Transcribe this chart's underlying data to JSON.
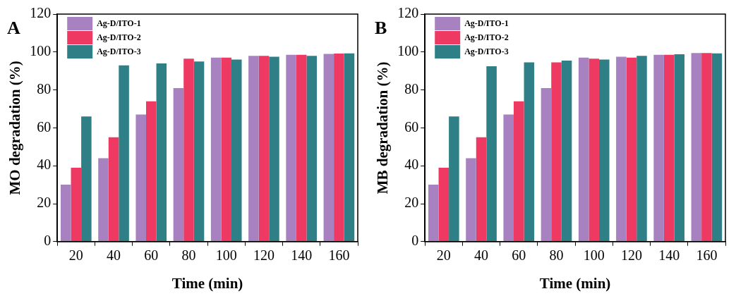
{
  "chart_data": [
    {
      "type": "bar",
      "annotations": [
        "A"
      ],
      "xlabel": "Time (min)",
      "ylabel": "MO degradation (%)",
      "categories": [
        "20",
        "40",
        "60",
        "80",
        "100",
        "120",
        "140",
        "160"
      ],
      "ylim": [
        0,
        120
      ],
      "yticks": [
        0,
        20,
        40,
        60,
        80,
        100,
        120
      ],
      "legend": "top left",
      "series": [
        {
          "name": "Ag-D/ITO-1",
          "color": "#a882c0",
          "values": [
            30,
            44,
            67,
            81,
            97,
            98,
            98.5,
            99
          ]
        },
        {
          "name": "Ag-D/ITO-2",
          "color": "#ee3a62",
          "values": [
            39,
            55,
            74,
            96.5,
            97,
            98,
            98.5,
            99.2
          ]
        },
        {
          "name": "Ag-D/ITO-3",
          "color": "#2e8086",
          "values": [
            66,
            93,
            94,
            95,
            96,
            97.5,
            98,
            99.3
          ]
        }
      ]
    },
    {
      "type": "bar",
      "annotations": [
        "B"
      ],
      "xlabel": "Time (min)",
      "ylabel": "MB degradation (%)",
      "categories": [
        "20",
        "40",
        "60",
        "80",
        "100",
        "120",
        "140",
        "160"
      ],
      "ylim": [
        0,
        120
      ],
      "yticks": [
        0,
        20,
        40,
        60,
        80,
        100,
        120
      ],
      "legend": "top left",
      "series": [
        {
          "name": "Ag-D/ITO-1",
          "color": "#a882c0",
          "values": [
            30,
            44,
            67,
            81,
            97,
            97.5,
            98.5,
            99.5
          ]
        },
        {
          "name": "Ag-D/ITO-2",
          "color": "#ee3a62",
          "values": [
            39,
            55,
            74,
            94.5,
            96.5,
            97,
            98.5,
            99.5
          ]
        },
        {
          "name": "Ag-D/ITO-3",
          "color": "#2e8086",
          "values": [
            66,
            92.5,
            94.5,
            95.5,
            96,
            98,
            98.8,
            99.3
          ]
        }
      ]
    }
  ]
}
